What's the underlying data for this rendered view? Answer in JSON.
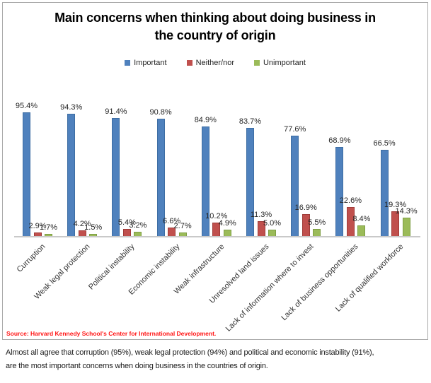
{
  "header": {
    "title_lines": [
      "Main concerns when thinking about doing business in",
      "the country of origin"
    ]
  },
  "chart_data": {
    "type": "bar",
    "title": "Main concerns when thinking about doing business in the country of origin",
    "categories": [
      "Curruption",
      "Weak legal protection",
      "Political instability",
      "Economic instability",
      "Weak infrastructure",
      "Unresolved land issues",
      "Lack of information where to invest",
      "Lack of business opportunities",
      "Lack of qualified workforce"
    ],
    "series": [
      {
        "name": "Important",
        "color": "#4F81BD",
        "edge_color": "#3D6DA3",
        "values": [
          95.4,
          94.3,
          91.4,
          90.8,
          84.9,
          83.7,
          77.6,
          68.9,
          66.5
        ]
      },
      {
        "name": "Neither/nor",
        "color": "#C0504D",
        "edge_color": "#9F3B38",
        "values": [
          2.9,
          4.2,
          5.4,
          6.6,
          10.2,
          11.3,
          16.9,
          22.6,
          19.3
        ]
      },
      {
        "name": "Unimportant",
        "color": "#9BBB59",
        "edge_color": "#7E9E44",
        "values": [
          1.7,
          1.5,
          3.2,
          2.7,
          4.9,
          5.0,
          5.5,
          8.4,
          14.3
        ]
      }
    ],
    "value_suffix": "%",
    "ylim": [
      0,
      100
    ],
    "grid": false,
    "legend_position": "top-center",
    "data_labels": true,
    "xlabel": "",
    "ylabel": ""
  },
  "source": {
    "label": "Source: Harvard Kennedy School's Center for International Development.",
    "color": "#ff1515"
  },
  "caption": {
    "lines": [
      "Almost all agree that corruption (95%), weak legal protection (94%) and political and economic instability (91%),",
      "are the most important concerns when doing business in the countries of origin."
    ]
  }
}
